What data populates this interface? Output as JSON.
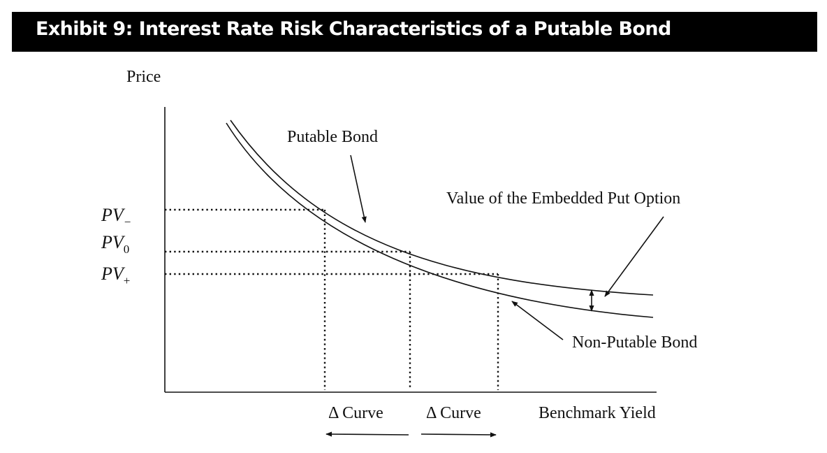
{
  "exhibit_title": "Exhibit 9: Interest Rate Risk Characteristics of a Putable Bond",
  "chart_data": {
    "type": "line",
    "title": "Exhibit 9: Interest Rate Risk Characteristics of a Putable Bond",
    "ylabel": "Price",
    "xlabel": "Benchmark Yield",
    "axis_numbers_shown": false,
    "series": [
      {
        "name": "Putable Bond",
        "label": "Putable Bond"
      },
      {
        "name": "Non-Putable Bond",
        "label": "Non-Putable Bond"
      }
    ],
    "y_markers": [
      {
        "id": "pv_minus",
        "base": "PV",
        "sub": "−"
      },
      {
        "id": "pv_zero",
        "base": "PV",
        "sub": "0"
      },
      {
        "id": "pv_plus",
        "base": "PV",
        "sub": "+"
      }
    ],
    "x_annotations": [
      {
        "label": "Δ Curve",
        "direction": "left"
      },
      {
        "label": "Δ Curve",
        "direction": "right"
      }
    ],
    "annotation": "Value of the Embedded Put Option"
  },
  "colors": {
    "banner_bg": "#000000",
    "banner_text": "#ffffff",
    "ink": "#111111"
  }
}
